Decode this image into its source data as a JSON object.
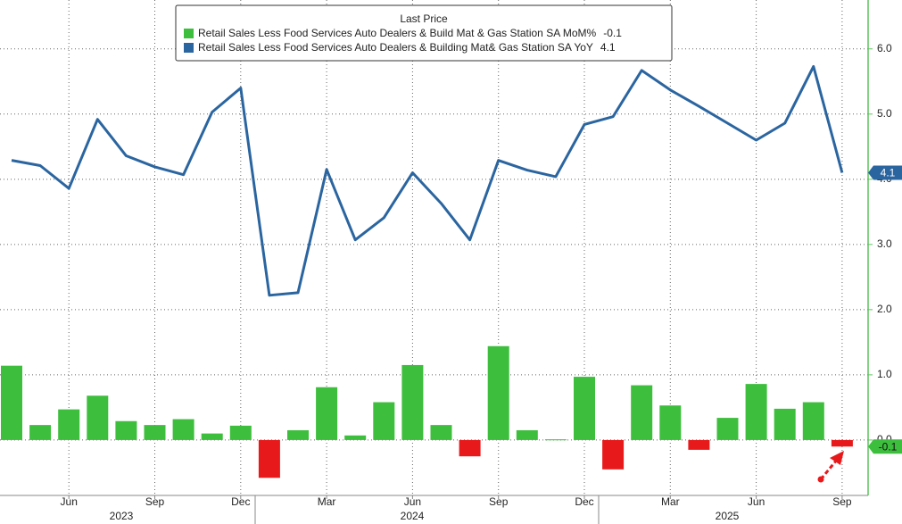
{
  "chart_data": {
    "type": "bar_line",
    "legend_title": "Last Price",
    "categories": [
      null,
      null,
      "Jun",
      null,
      null,
      "Sep",
      null,
      null,
      "Dec",
      null,
      null,
      "Mar",
      null,
      null,
      "Jun",
      null,
      null,
      "Sep",
      null,
      null,
      "Dec",
      null,
      null,
      "Mar",
      null,
      null,
      "Jun",
      null,
      null,
      "Sep"
    ],
    "years": [
      "2023",
      "2024",
      "2025"
    ],
    "series": [
      {
        "name": "Retail Sales Less Food Services Auto Dealers & Build Mat & Gas Station SA MoM%",
        "type": "bar",
        "color": "#3dbe3d",
        "negative_color": "#e8191b",
        "values": [
          1.14,
          0.23,
          0.47,
          0.68,
          0.29,
          0.23,
          0.32,
          0.1,
          0.22,
          -0.58,
          0.15,
          0.81,
          0.07,
          0.58,
          1.15,
          0.23,
          -0.25,
          1.44,
          0.15,
          0.01,
          0.97,
          -0.45,
          0.84,
          0.53,
          -0.15,
          0.34,
          0.86,
          0.48,
          0.58,
          -0.1
        ]
      },
      {
        "name": "Retail Sales Less Food Services Auto Dealers & Building Mat& Gas Station SA YoY",
        "type": "line",
        "color": "#2b65a0",
        "values": [
          4.29,
          4.21,
          3.86,
          4.92,
          4.36,
          4.19,
          4.07,
          5.03,
          5.4,
          2.22,
          2.26,
          4.15,
          3.07,
          3.41,
          4.1,
          3.63,
          3.07,
          4.29,
          4.14,
          4.04,
          4.84,
          4.96,
          5.67,
          5.37,
          5.12,
          4.86,
          4.6,
          4.86,
          5.73,
          4.1
        ]
      }
    ],
    "ylim": [
      -0.85,
      6.75
    ],
    "yticks": [
      {
        "value": 0,
        "label": "0.0"
      },
      {
        "value": 1,
        "label": "1.0"
      },
      {
        "value": 2,
        "label": "2.0"
      },
      {
        "value": 3,
        "label": "3.0"
      },
      {
        "value": 4,
        "label": "4.0"
      },
      {
        "value": 5,
        "label": "5.0"
      },
      {
        "value": 6,
        "label": "6.0"
      }
    ],
    "grid": true
  }
}
